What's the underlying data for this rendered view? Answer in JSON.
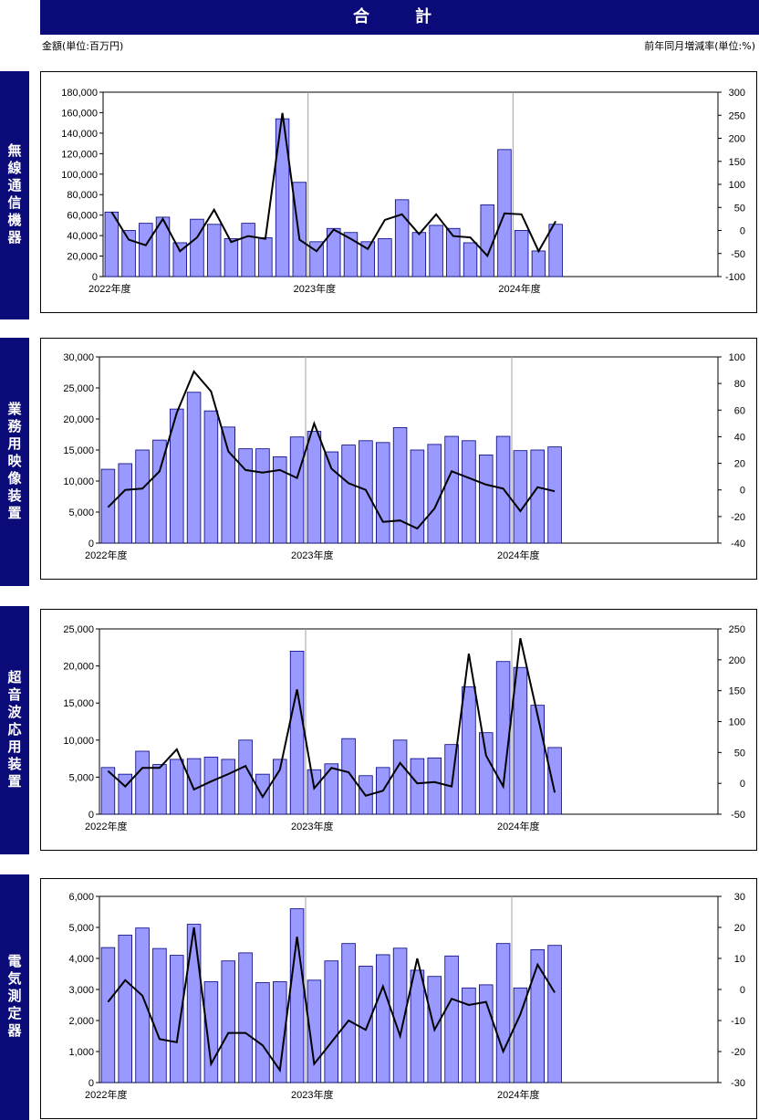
{
  "header": {
    "title": "合　計",
    "unit_left": "金額(単位:百万円)",
    "unit_right": "前年同月増減率(単位:%)"
  },
  "colors": {
    "bar_fill": "#9999ff",
    "bar_stroke": "#000080",
    "line": "#000000",
    "header_bg": "#0a0a78"
  },
  "chart_data": [
    {
      "type": "bar",
      "name": "無線通信機器",
      "x_tick_labels": [
        "2022年度",
        "2023年度",
        "2024年度"
      ],
      "ylim": [
        0,
        180000
      ],
      "yticks": [
        0,
        20000,
        40000,
        60000,
        80000,
        100000,
        120000,
        140000,
        160000,
        180000
      ],
      "y2lim": [
        -100,
        300
      ],
      "y2ticks": [
        -100,
        -50,
        0,
        50,
        100,
        150,
        200,
        250,
        300
      ],
      "bars": [
        63000,
        45000,
        52000,
        58000,
        33000,
        56000,
        51000,
        37000,
        52000,
        38000,
        154000,
        92000,
        34000,
        47000,
        43000,
        34000,
        37000,
        75000,
        43000,
        50000,
        47000,
        33000,
        70000,
        124000,
        45000,
        25000,
        51000
      ],
      "line": [
        40,
        -20,
        -32,
        25,
        -45,
        -15,
        45,
        -25,
        -12,
        -18,
        255,
        -20,
        -45,
        2,
        -18,
        -40,
        23,
        35,
        -8,
        35,
        -12,
        -15,
        -55,
        37,
        35,
        -45,
        20
      ]
    },
    {
      "type": "bar",
      "name": "業務用映像装置",
      "x_tick_labels": [
        "2022年度",
        "2023年度",
        "2024年度"
      ],
      "ylim": [
        0,
        30000
      ],
      "yticks": [
        0,
        5000,
        10000,
        15000,
        20000,
        25000,
        30000
      ],
      "y2lim": [
        -40,
        100
      ],
      "y2ticks": [
        -40,
        -20,
        0,
        20,
        40,
        60,
        80,
        100
      ],
      "bars": [
        11900,
        12800,
        15000,
        16600,
        21600,
        24300,
        21300,
        18700,
        15200,
        15200,
        13900,
        17100,
        18000,
        14700,
        15800,
        16500,
        16200,
        18600,
        15000,
        15900,
        17200,
        16500,
        14200,
        17200,
        14900,
        15000,
        15500
      ],
      "line": [
        -13,
        0,
        1,
        14,
        58,
        89,
        74,
        29,
        15,
        13,
        15,
        9,
        50,
        16,
        5,
        0,
        -24,
        -23,
        -29,
        -14,
        14,
        9,
        4,
        1,
        -16,
        2,
        -1
      ]
    },
    {
      "type": "bar",
      "name": "超音波応用装置",
      "x_tick_labels": [
        "2022年度",
        "2023年度",
        "2024年度"
      ],
      "ylim": [
        0,
        25000
      ],
      "yticks": [
        0,
        5000,
        10000,
        15000,
        20000,
        25000
      ],
      "y2lim": [
        -50,
        250
      ],
      "y2ticks": [
        -50,
        0,
        50,
        100,
        150,
        200,
        250
      ],
      "bars": [
        6300,
        5400,
        8500,
        6700,
        7400,
        7500,
        7700,
        7400,
        10000,
        5400,
        7400,
        22000,
        6000,
        6800,
        10200,
        5200,
        6300,
        10000,
        7500,
        7600,
        9400,
        17200,
        11000,
        20600,
        19800,
        14700,
        9000
      ],
      "line": [
        20,
        -5,
        25,
        25,
        55,
        -10,
        3,
        15,
        28,
        -22,
        22,
        152,
        -8,
        25,
        18,
        -20,
        -12,
        33,
        0,
        2,
        -5,
        210,
        45,
        -5,
        235,
        110,
        -15
      ]
    },
    {
      "type": "bar",
      "name": "電気測定器",
      "x_tick_labels": [
        "2022年度",
        "2023年度",
        "2024年度"
      ],
      "ylim": [
        0,
        6000
      ],
      "yticks": [
        0,
        1000,
        2000,
        3000,
        4000,
        5000,
        6000
      ],
      "y2lim": [
        -30,
        30
      ],
      "y2ticks": [
        -30,
        -20,
        -10,
        0,
        10,
        20,
        30
      ],
      "bars": [
        4350,
        4750,
        4980,
        4320,
        4100,
        5100,
        3250,
        3920,
        4180,
        3220,
        3250,
        5600,
        3300,
        3920,
        4480,
        3750,
        4120,
        4330,
        3620,
        3420,
        4080,
        3050,
        3150,
        4480,
        3050,
        4280,
        4420
      ],
      "line": [
        -4,
        3,
        -2,
        -16,
        -17,
        20,
        -24,
        -14,
        -14,
        -18,
        -26,
        17,
        -24,
        -17,
        -10,
        -13,
        1,
        -15,
        10,
        -13,
        -3,
        -5,
        -4,
        -20,
        -8,
        8,
        -1
      ]
    }
  ]
}
